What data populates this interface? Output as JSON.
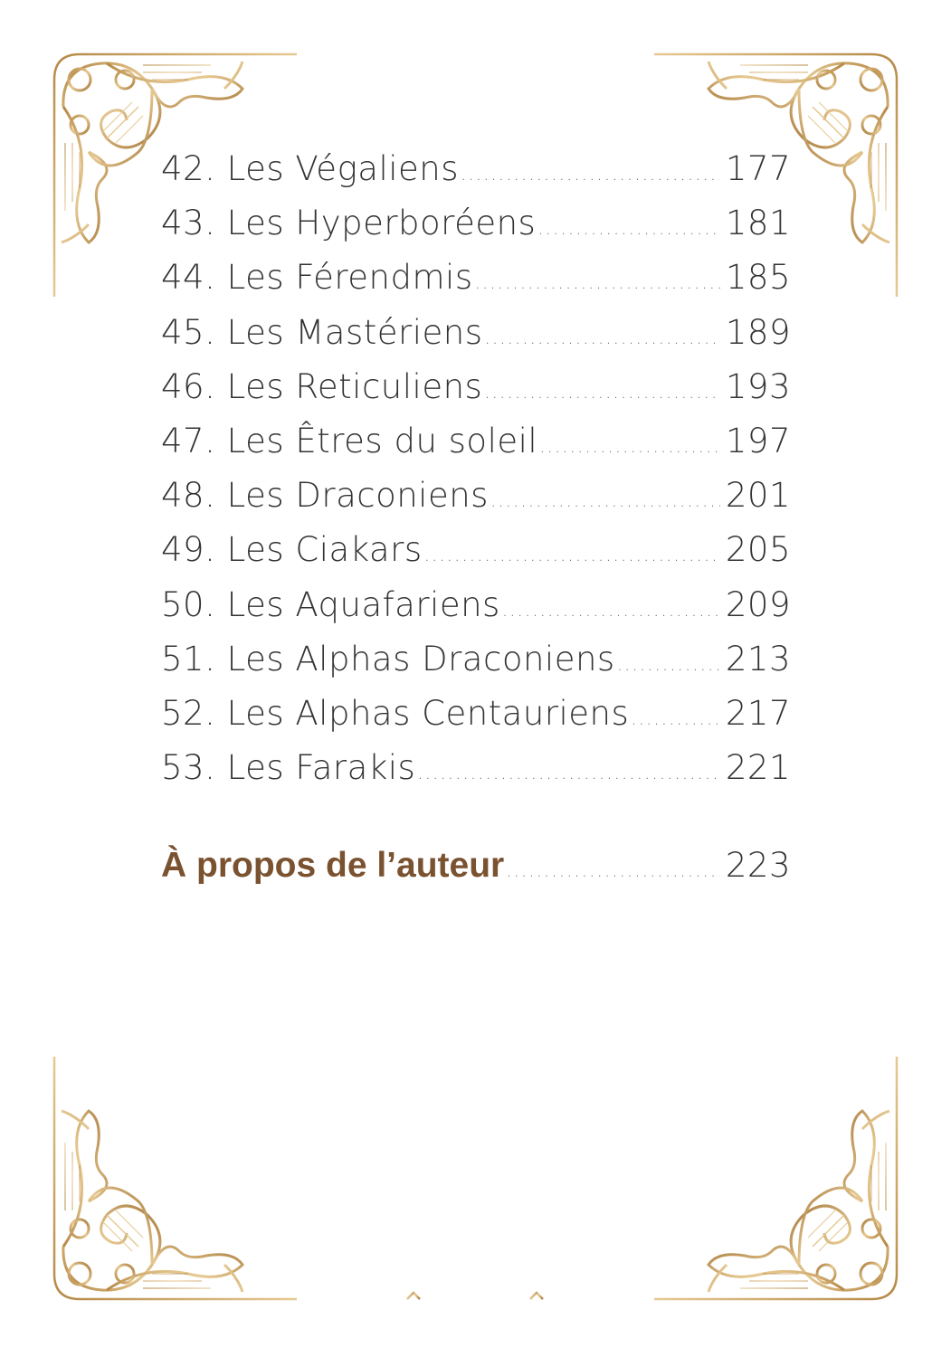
{
  "toc": {
    "entries": [
      {
        "title": "42. Les Végaliens",
        "page": "177"
      },
      {
        "title": "43. Les Hyperboréens",
        "page": "181"
      },
      {
        "title": "44. Les Férendmis",
        "page": "185"
      },
      {
        "title": "45. Les Mastériens",
        "page": "189"
      },
      {
        "title": "46. Les Reticuliens",
        "page": "193"
      },
      {
        "title": "47. Les Êtres du soleil",
        "page": "197"
      },
      {
        "title": "48. Les Draconiens",
        "page": "201"
      },
      {
        "title": "49. Les Ciakars",
        "page": "205"
      },
      {
        "title": "50. Les Aquafariens",
        "page": "209"
      },
      {
        "title": "51. Les Alphas Draconiens",
        "page": "213"
      },
      {
        "title": "52. Les Alphas Centauriens",
        "page": "217"
      },
      {
        "title": "53. Les Farakis",
        "page": "221"
      }
    ],
    "about": {
      "title": "À propos de l’auteur",
      "page": "223"
    }
  },
  "colors": {
    "gold": "#c8a062",
    "heading": "#7a5230",
    "text": "#333333"
  },
  "icons": [
    "ornamental-corner-icon",
    "footer-ornament-icon"
  ]
}
